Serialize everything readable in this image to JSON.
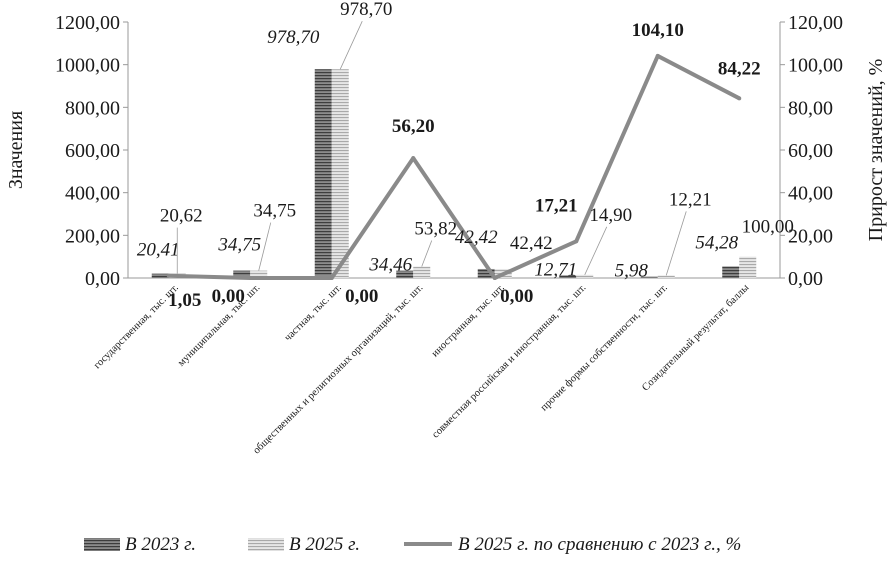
{
  "chart_data": {
    "type": "bar",
    "combo": "bar-line-dual-axis",
    "categories": [
      "государственная, тыс. шт.",
      "муниципальная, тыс. шт.",
      "частная, тыс. шт.",
      "общественных и религиозных организаций, тыс. шт.",
      "иностранная, тыс. шт.",
      "совместная российская и иностранная, тыс. шт.",
      "прочие формы собственности, тыс. шт.",
      "Созидательный результат, баллы"
    ],
    "series": [
      {
        "name": "В 2023 г.",
        "kind": "bar",
        "axis": "left",
        "values": [
          20.41,
          34.75,
          978.7,
          34.46,
          42.42,
          12.71,
          5.98,
          54.28
        ],
        "labels": [
          "20,41",
          "34,75",
          "978,70",
          "34,46",
          "42,42",
          "12,71",
          "5,98",
          "54,28"
        ],
        "color": "#6e6e6e"
      },
      {
        "name": "В 2025 г.",
        "kind": "bar",
        "axis": "left",
        "values": [
          20.62,
          34.75,
          978.7,
          53.82,
          42.42,
          14.9,
          12.21,
          100.0
        ],
        "labels": [
          "20,62",
          "34,75",
          "978,70",
          "53,82",
          "42,42",
          "14,90",
          "12,21",
          "100,00"
        ],
        "color": "#c8c8c8"
      },
      {
        "name": "В 2025 г. по сравнению с 2023 г., %",
        "kind": "line",
        "axis": "right",
        "values": [
          1.05,
          0.0,
          0.0,
          56.2,
          0.0,
          17.21,
          104.1,
          84.22
        ],
        "labels": [
          "1,05",
          "0,00",
          "0,00",
          "56,20",
          "0,00",
          "17,21",
          "104,10",
          "84,22"
        ],
        "color": "#8a8a8a"
      }
    ],
    "ylabel": "Значения",
    "y2label": "Прирост значений, %",
    "ylim": [
      0,
      1200
    ],
    "y2lim": [
      0,
      120
    ],
    "yticks": [
      "0,00",
      "200,00",
      "400,00",
      "600,00",
      "800,00",
      "1000,00",
      "1200,00"
    ],
    "y2ticks": [
      "0,00",
      "20,00",
      "40,00",
      "60,00",
      "80,00",
      "100,00",
      "120,00"
    ],
    "legend": [
      "В 2023 г.",
      "В 2025 г.",
      "В 2025 г. по сравнению с 2023 г., %"
    ],
    "legend_position": "bottom",
    "grid": false
  }
}
